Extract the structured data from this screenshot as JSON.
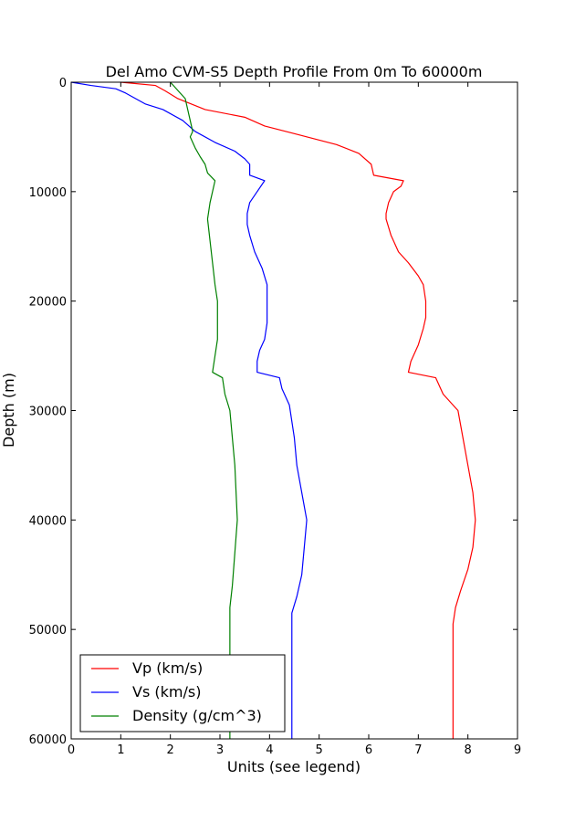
{
  "chart_data": {
    "type": "line",
    "title": "Del Amo CVM-S5 Depth Profile From 0m To 60000m",
    "xlabel": "Units (see legend)",
    "ylabel": "Depth (m)",
    "xlim": [
      0,
      9
    ],
    "ylim": [
      0,
      60000
    ],
    "y_inverted": true,
    "x_ticks": [
      "0",
      "1",
      "2",
      "3",
      "4",
      "5",
      "6",
      "7",
      "8",
      "9"
    ],
    "y_ticks": [
      "0",
      "10000",
      "20000",
      "30000",
      "40000",
      "50000",
      "60000"
    ],
    "grid": false,
    "legend_position": "lower-left",
    "series": [
      {
        "name": "Vp (km/s)",
        "color": "#ff0000",
        "points": [
          [
            1.0,
            0
          ],
          [
            1.7,
            300
          ],
          [
            1.9,
            800
          ],
          [
            2.15,
            1500
          ],
          [
            2.7,
            2500
          ],
          [
            3.5,
            3200
          ],
          [
            3.9,
            4000
          ],
          [
            4.5,
            4700
          ],
          [
            5.35,
            5700
          ],
          [
            5.8,
            6500
          ],
          [
            6.05,
            7500
          ],
          [
            6.1,
            8500
          ],
          [
            6.7,
            9000
          ],
          [
            6.65,
            9500
          ],
          [
            6.5,
            10000
          ],
          [
            6.4,
            11000
          ],
          [
            6.35,
            12000
          ],
          [
            6.35,
            12500
          ],
          [
            6.45,
            14000
          ],
          [
            6.6,
            15500
          ],
          [
            6.8,
            16500
          ],
          [
            7.0,
            17700
          ],
          [
            7.1,
            18500
          ],
          [
            7.15,
            20000
          ],
          [
            7.15,
            21500
          ],
          [
            7.1,
            22500
          ],
          [
            7.0,
            24000
          ],
          [
            6.85,
            25500
          ],
          [
            6.8,
            26500
          ],
          [
            7.35,
            27000
          ],
          [
            7.5,
            28500
          ],
          [
            7.8,
            30000
          ],
          [
            7.9,
            32500
          ],
          [
            8.0,
            35000
          ],
          [
            8.1,
            37500
          ],
          [
            8.15,
            40000
          ],
          [
            8.1,
            42500
          ],
          [
            8.0,
            44500
          ],
          [
            7.85,
            46500
          ],
          [
            7.75,
            48000
          ],
          [
            7.7,
            49500
          ],
          [
            7.7,
            60000
          ]
        ]
      },
      {
        "name": "Vs (km/s)",
        "color": "#0000ff",
        "points": [
          [
            0.0,
            0
          ],
          [
            0.4,
            300
          ],
          [
            0.9,
            600
          ],
          [
            1.1,
            1000
          ],
          [
            1.5,
            2000
          ],
          [
            1.85,
            2500
          ],
          [
            2.25,
            3500
          ],
          [
            2.5,
            4500
          ],
          [
            2.9,
            5500
          ],
          [
            3.3,
            6300
          ],
          [
            3.5,
            7000
          ],
          [
            3.6,
            7500
          ],
          [
            3.6,
            8500
          ],
          [
            3.9,
            9000
          ],
          [
            3.75,
            10000
          ],
          [
            3.6,
            11000
          ],
          [
            3.55,
            12000
          ],
          [
            3.55,
            13000
          ],
          [
            3.6,
            14000
          ],
          [
            3.7,
            15500
          ],
          [
            3.85,
            17000
          ],
          [
            3.95,
            18500
          ],
          [
            3.95,
            20000
          ],
          [
            3.95,
            22000
          ],
          [
            3.9,
            23500
          ],
          [
            3.8,
            24500
          ],
          [
            3.75,
            25500
          ],
          [
            3.75,
            26500
          ],
          [
            4.2,
            27000
          ],
          [
            4.25,
            28000
          ],
          [
            4.4,
            29500
          ],
          [
            4.5,
            32500
          ],
          [
            4.55,
            35000
          ],
          [
            4.65,
            37500
          ],
          [
            4.75,
            40000
          ],
          [
            4.7,
            42500
          ],
          [
            4.65,
            45000
          ],
          [
            4.55,
            47000
          ],
          [
            4.45,
            48500
          ],
          [
            4.45,
            49500
          ],
          [
            4.45,
            60000
          ]
        ]
      },
      {
        "name": "Density (g/cm^3)",
        "color": "#008000",
        "points": [
          [
            2.0,
            0
          ],
          [
            2.1,
            500
          ],
          [
            2.2,
            1000
          ],
          [
            2.3,
            1500
          ],
          [
            2.35,
            2500
          ],
          [
            2.4,
            3500
          ],
          [
            2.45,
            4500
          ],
          [
            2.4,
            5000
          ],
          [
            2.5,
            6000
          ],
          [
            2.6,
            6800
          ],
          [
            2.7,
            7500
          ],
          [
            2.75,
            8300
          ],
          [
            2.9,
            9000
          ],
          [
            2.85,
            10000
          ],
          [
            2.8,
            11000
          ],
          [
            2.75,
            12500
          ],
          [
            2.8,
            14500
          ],
          [
            2.85,
            16500
          ],
          [
            2.9,
            18500
          ],
          [
            2.95,
            20000
          ],
          [
            2.95,
            22000
          ],
          [
            2.95,
            23500
          ],
          [
            2.9,
            25000
          ],
          [
            2.85,
            26500
          ],
          [
            3.05,
            27000
          ],
          [
            3.1,
            28500
          ],
          [
            3.2,
            30000
          ],
          [
            3.3,
            35000
          ],
          [
            3.35,
            40000
          ],
          [
            3.3,
            43000
          ],
          [
            3.25,
            46000
          ],
          [
            3.2,
            48000
          ],
          [
            3.2,
            60000
          ]
        ]
      }
    ]
  }
}
